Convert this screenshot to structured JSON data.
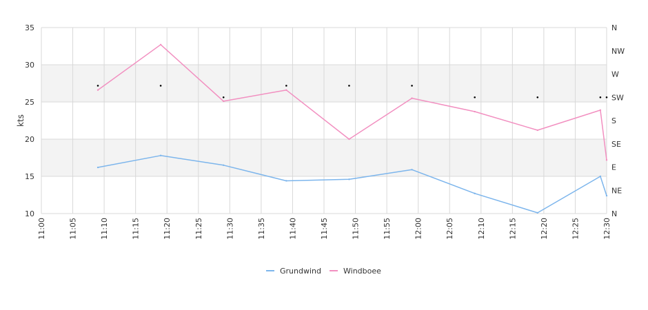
{
  "chart_data": {
    "type": "line",
    "title": "",
    "xlabel": "",
    "ylabel": "kts",
    "x": [
      "11:09",
      "11:19",
      "11:29",
      "11:39",
      "11:49",
      "11:59",
      "12:09",
      "12:19",
      "12:29",
      "12:30"
    ],
    "x_ticks": [
      "11:00",
      "11:05",
      "11:10",
      "11:15",
      "11:20",
      "11:25",
      "11:30",
      "11:35",
      "11:40",
      "11:45",
      "11:50",
      "11:55",
      "12:00",
      "12:05",
      "12:10",
      "12:15",
      "12:20",
      "12:25",
      "12:30"
    ],
    "ylim": [
      10,
      35
    ],
    "y_ticks": [
      "10",
      "15",
      "20",
      "25",
      "30",
      "35"
    ],
    "y2_ticks": [
      "N",
      "NE",
      "E",
      "SE",
      "S",
      "SW",
      "W",
      "NW",
      "N"
    ],
    "y2lim": [
      0,
      360
    ],
    "series": [
      {
        "name": "Grundwind",
        "color": "#7cb5ec",
        "values": [
          16.2,
          17.8,
          16.5,
          14.4,
          14.6,
          15.9,
          12.7,
          10.1,
          15.0,
          12.4
        ]
      },
      {
        "name": "Windboee",
        "color": "#f28fc0",
        "values": [
          26.6,
          32.7,
          25.1,
          26.6,
          20.0,
          25.5,
          23.7,
          21.2,
          23.9,
          17.2
        ]
      }
    ],
    "direction": {
      "x": [
        "11:09",
        "11:19",
        "11:29",
        "11:39",
        "11:49",
        "11:59",
        "12:09",
        "12:19",
        "12:29",
        "12:30"
      ],
      "values": [
        247.5,
        247.5,
        225,
        247.5,
        247.5,
        247.5,
        225,
        225,
        225,
        225
      ]
    },
    "grid": true,
    "legend": "bottom-center"
  }
}
